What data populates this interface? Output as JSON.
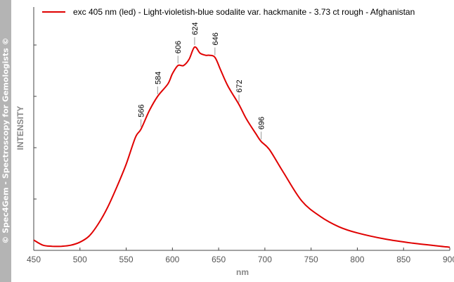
{
  "watermark": "© Spec4Gem - Spectroscopy for Gemologists ©",
  "chart_data": {
    "type": "line",
    "xlabel": "nm",
    "ylabel": "INTENSITY",
    "xlim": [
      450,
      900
    ],
    "ylim": [
      0,
      1
    ],
    "x_ticks": [
      450,
      500,
      550,
      600,
      650,
      700,
      750,
      800,
      850,
      900
    ],
    "y_ticks_labeled": false,
    "grid": false,
    "legend_position": "top",
    "series": [
      {
        "name": "exc 405 nm (led) - Light-violetish-blue sodalite var. hackmanite - 3.73 ct rough - Afghanistan",
        "color": "#e00000",
        "x": [
          450,
          460,
          470,
          480,
          490,
          500,
          510,
          520,
          530,
          540,
          550,
          560,
          566,
          575,
          584,
          595,
          600,
          606,
          612,
          618,
          624,
          630,
          636,
          640,
          646,
          652,
          660,
          672,
          680,
          690,
          696,
          705,
          720,
          740,
          760,
          780,
          800,
          830,
          860,
          900
        ],
        "y": [
          0.05,
          0.025,
          0.02,
          0.02,
          0.025,
          0.04,
          0.07,
          0.13,
          0.21,
          0.31,
          0.42,
          0.55,
          0.59,
          0.68,
          0.75,
          0.81,
          0.86,
          0.9,
          0.9,
          0.93,
          0.99,
          0.96,
          0.95,
          0.95,
          0.94,
          0.88,
          0.8,
          0.71,
          0.64,
          0.57,
          0.53,
          0.49,
          0.38,
          0.24,
          0.165,
          0.115,
          0.085,
          0.055,
          0.035,
          0.015
        ]
      }
    ],
    "peak_annotations": [
      566,
      584,
      606,
      624,
      646,
      672,
      696
    ]
  }
}
